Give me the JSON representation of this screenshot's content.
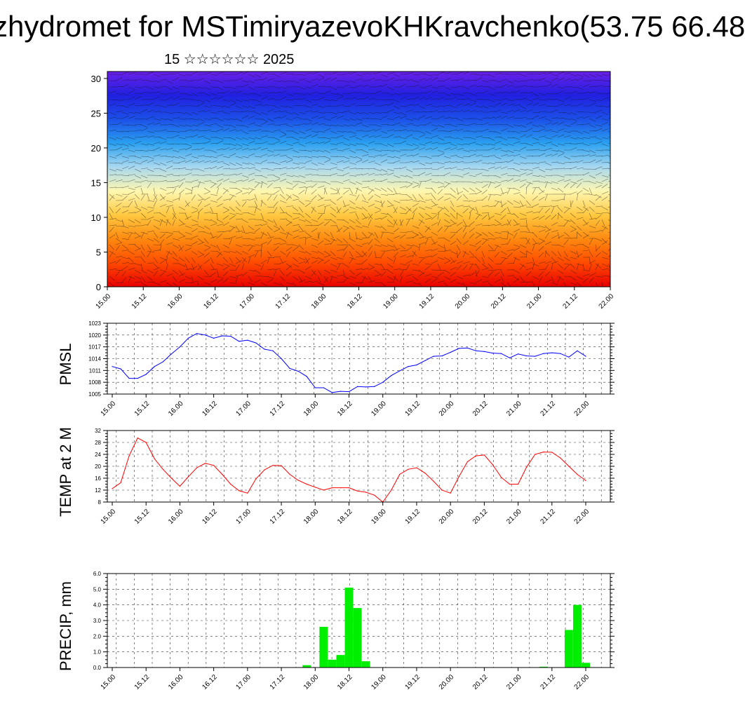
{
  "header": {
    "title": "zhydromet for MSTimiryazevoKHKravchenko(53.75 66.48",
    "subtitle": "15 ☆☆☆☆☆☆ 2025"
  },
  "time_ticks": [
    "15.00",
    "15.12",
    "16.00",
    "16.12",
    "17.00",
    "17.12",
    "18.00",
    "18.12",
    "19.00",
    "19.12",
    "20.00",
    "20.12",
    "21.00",
    "21.12",
    "22.00"
  ],
  "chart_data": [
    {
      "type": "heatmap",
      "ylim": [
        0,
        31
      ],
      "yticks": [
        0,
        5,
        10,
        15,
        20,
        25,
        30
      ],
      "colors": [
        "#e80000",
        "#ff4a00",
        "#ff8a10",
        "#ffc840",
        "#fff7b0",
        "#a8d8f0",
        "#2aa0f0",
        "#1c50e8",
        "#2020e0",
        "#6a20e8"
      ]
    },
    {
      "type": "line",
      "ylabel": "PMSL",
      "ylim": [
        1005,
        1023
      ],
      "yticks": [
        1005,
        1008,
        1011,
        1014,
        1017,
        1020,
        1023
      ],
      "color": "#0000ff",
      "x": [
        0,
        3,
        6,
        9,
        12,
        15,
        18,
        21,
        24,
        27,
        30,
        33,
        36,
        39,
        42,
        45,
        48,
        51,
        54,
        57,
        60,
        63,
        66,
        69,
        72,
        75,
        78,
        81,
        84,
        87,
        90,
        93,
        96,
        99,
        102,
        105,
        108,
        111,
        114,
        117,
        120,
        123,
        126,
        129,
        132,
        135,
        138,
        141,
        144,
        147,
        150,
        153,
        156,
        159,
        162,
        165,
        168
      ],
      "values": [
        1012,
        1011.4,
        1009,
        1009,
        1010,
        1012,
        1013.2,
        1015.2,
        1017,
        1019.2,
        1020.4,
        1020,
        1019.2,
        1019.8,
        1019.7,
        1018.4,
        1018.7,
        1018,
        1016.4,
        1016,
        1014,
        1011.5,
        1010.8,
        1009.5,
        1006.6,
        1006.6,
        1005.4,
        1005.7,
        1005.6,
        1006.9,
        1006.8,
        1006.9,
        1008,
        1009.7,
        1010.9,
        1012,
        1012.4,
        1013.5,
        1014.6,
        1014.7,
        1015.6,
        1016.6,
        1016.7,
        1016,
        1015.8,
        1015.4,
        1015.3,
        1014.2,
        1015.2,
        1014.7,
        1014.6,
        1015.3,
        1015.5,
        1015.3,
        1014.4,
        1016,
        1014.6
      ]
    },
    {
      "type": "line",
      "ylabel": "TEMP at 2 M",
      "ylim": [
        8,
        32
      ],
      "yticks": [
        8,
        12,
        16,
        20,
        24,
        28,
        32
      ],
      "color": "#ff0000",
      "x": [
        0,
        3,
        6,
        9,
        12,
        15,
        18,
        21,
        24,
        27,
        30,
        33,
        36,
        39,
        42,
        45,
        48,
        51,
        54,
        57,
        60,
        63,
        66,
        69,
        72,
        75,
        78,
        81,
        84,
        87,
        90,
        93,
        96,
        99,
        102,
        105,
        108,
        111,
        114,
        117,
        120,
        123,
        126,
        129,
        132,
        135,
        138,
        141,
        144,
        147,
        150,
        153,
        156,
        159,
        162,
        165,
        168
      ],
      "values": [
        12.5,
        14.5,
        23.5,
        29.5,
        28,
        22.5,
        19,
        16,
        13.3,
        16.5,
        19.5,
        21,
        20.3,
        17.3,
        14,
        11.8,
        11,
        15.8,
        18.8,
        20.3,
        20.2,
        17.3,
        15.3,
        14,
        13,
        12,
        12.8,
        12.8,
        12.8,
        11.7,
        11.3,
        10.3,
        8,
        12,
        17.3,
        19,
        19.5,
        17.7,
        15,
        12,
        11,
        16.5,
        21.5,
        23.5,
        23.8,
        20.5,
        16.3,
        14,
        14,
        19.7,
        24,
        24.8,
        24.7,
        22.8,
        20,
        17.3,
        15.2
      ]
    },
    {
      "type": "bar",
      "ylabel": "PRECIP, mm",
      "ylim": [
        0,
        6
      ],
      "yticks": [
        "0.0",
        "1.0",
        "2.0",
        "3.0",
        "4.0",
        "5.0",
        "6.0"
      ],
      "color": "#00ee00",
      "x": [
        69,
        75,
        78,
        81,
        84,
        87,
        90,
        153,
        162,
        165,
        168
      ],
      "values": [
        0.15,
        2.6,
        0.5,
        0.8,
        5.1,
        3.8,
        0.4,
        0.05,
        2.4,
        4.0,
        0.3
      ]
    }
  ]
}
